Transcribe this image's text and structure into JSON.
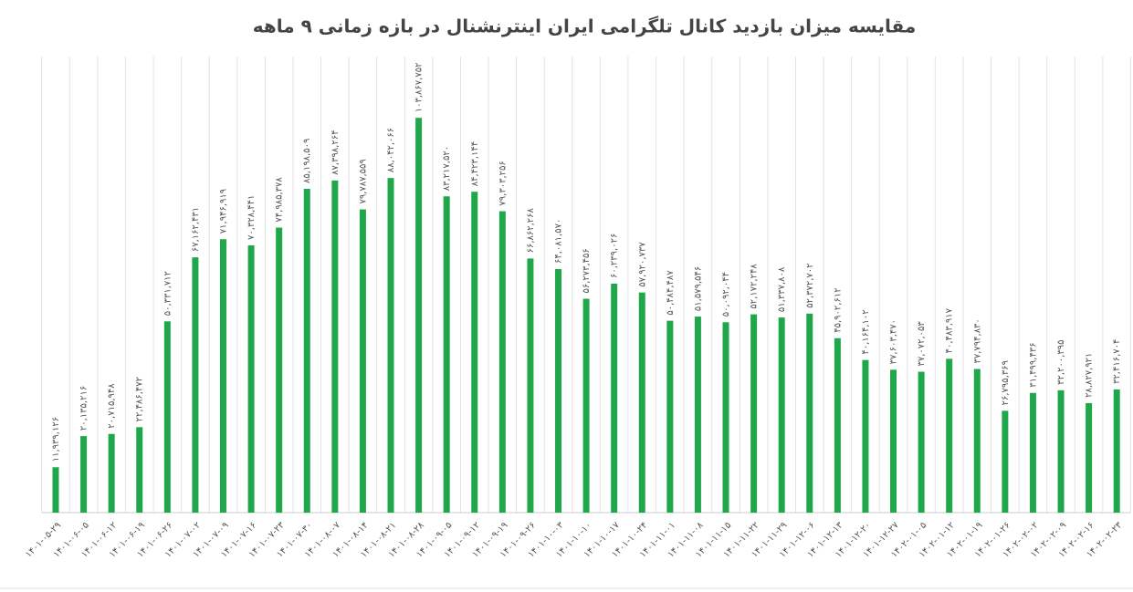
{
  "chart_data": {
    "type": "bar",
    "title": "مقایسه میزان بازدید کانال تلگرامی ایران اینترنشنال در بازه زمانی ۹ ماهه",
    "categories": [
      "۱۴۰۱-۰۵-۲۹",
      "۱۴۰۱-۰۶-۰۵",
      "۱۴۰۱-۰۶-۱۲",
      "۱۴۰۱-۰۶-۱۹",
      "۱۴۰۱-۰۶-۲۶",
      "۱۴۰۱-۰۷-۰۲",
      "۱۴۰۱-۰۷-۰۹",
      "۱۴۰۱-۰۷-۱۶",
      "۱۴۰۱-۰۷-۲۳",
      "۱۴۰۱-۰۷-۳۰",
      "۱۴۰۱-۰۸-۰۷",
      "۱۴۰۱-۰۸-۱۴",
      "۱۴۰۱-۰۸-۲۱",
      "۱۴۰۱-۰۸-۲۸",
      "۱۴۰۱-۰۹-۰۵",
      "۱۴۰۱-۰۹-۱۲",
      "۱۴۰۱-۰۹-۱۹",
      "۱۴۰۱-۰۹-۲۶",
      "۱۴۰۱-۱۰-۰۳",
      "۱۴۰۱-۱۰-۱۰",
      "۱۴۰۱-۱۰-۱۷",
      "۱۴۰۱-۱۰-۲۴",
      "۱۴۰۱-۱۱-۰۱",
      "۱۴۰۱-۱۱-۰۸",
      "۱۴۰۱-۱۱-۱۵",
      "۱۴۰۱-۱۱-۲۲",
      "۱۴۰۱-۱۱-۲۹",
      "۱۴۰۱-۱۲-۰۶",
      "۱۴۰۱-۱۲-۱۳",
      "۱۴۰۱-۱۲-۲۰",
      "۱۴۰۱-۱۲-۲۷",
      "۱۴۰۲-۰۱-۰۵",
      "۱۴۰۲-۰۱-۱۲",
      "۱۴۰۲-۰۱-۱۹",
      "۱۴۰۲-۰۱-۲۶",
      "۱۴۰۲-۰۲-۰۲",
      "۱۴۰۲-۰۲-۰۹",
      "۱۴۰۲-۰۲-۱۶",
      "۱۴۰۲-۰۲-۲۳"
    ],
    "values": [
      11939126,
      20135216,
      20715948,
      22486472,
      50331712,
      67162431,
      71946919,
      70328441,
      74985378,
      85198509,
      87398264,
      79787559,
      88042066,
      103867752,
      83217520,
      84423144,
      79303256,
      66862268,
      64081570,
      56273456,
      60239026,
      57920737,
      50484487,
      51579546,
      50092044,
      52172248,
      51337808,
      52372702,
      45902612,
      40164102,
      37603470,
      37072053,
      40483917,
      37794830,
      26795369,
      31499436,
      32200395,
      28827921,
      32416704
    ],
    "value_labels": [
      "۱۱,۹۳۹,۱۲۶",
      "۲۰,۱۳۵,۲۱۶",
      "۲۰,۷۱۵,۹۴۸",
      "۲۲,۴۸۶,۴۷۲",
      "۵۰,۳۳۱,۷۱۲",
      "۶۷,۱۶۲,۴۳۱",
      "۷۱,۹۴۶,۹۱۹",
      "۷۰,۳۲۸,۴۴۱",
      "۷۴,۹۸۵,۳۷۸",
      "۸۵,۱۹۸,۵۰۹",
      "۸۷,۳۹۸,۲۶۴",
      "۷۹,۷۸۷,۵۵۹",
      "۸۸,۰۴۲,۰۶۶",
      "۱۰۳,۸۶۷,۷۵۲",
      "۸۳,۲۱۷,۵۲۰",
      "۸۴,۴۲۳,۱۴۴",
      "۷۹,۳۰۳,۲۵۶",
      "۶۶,۸۶۲,۲۶۸",
      "۶۴,۰۸۱,۵۷۰",
      "۵۶,۲۷۳,۴۵۶",
      "۶۰,۲۳۹,۰۲۶",
      "۵۷,۹۲۰,۷۳۷",
      "۵۰,۴۸۴,۴۸۷",
      "۵۱,۵۷۹,۵۴۶",
      "۵۰,۰۹۲,۰۴۴",
      "۵۲,۱۷۲,۲۴۸",
      "۵۱,۳۳۷,۸۰۸",
      "۵۲,۳۷۲,۷۰۲",
      "۴۵,۹۰۲,۶۱۲",
      "۴۰,۱۶۴,۱۰۲",
      "۳۷,۶۰۳,۴۷۰",
      "۳۷,۰۷۲,۰۵۳",
      "۴۰,۴۸۳,۹۱۷",
      "۳۷,۷۹۴,۸۳۰",
      "۲۶,۷۹۵,۳۶۹",
      "۳۱,۴۹۹,۴۳۶",
      "۳۲,۲۰۰,۳۹۵",
      "۲۸,۸۲۷,۹۲۱",
      "۳۲,۴۱۶,۷۰۴"
    ],
    "color": "#1fa84a",
    "ylim": [
      0,
      120000000
    ],
    "grid": true
  }
}
